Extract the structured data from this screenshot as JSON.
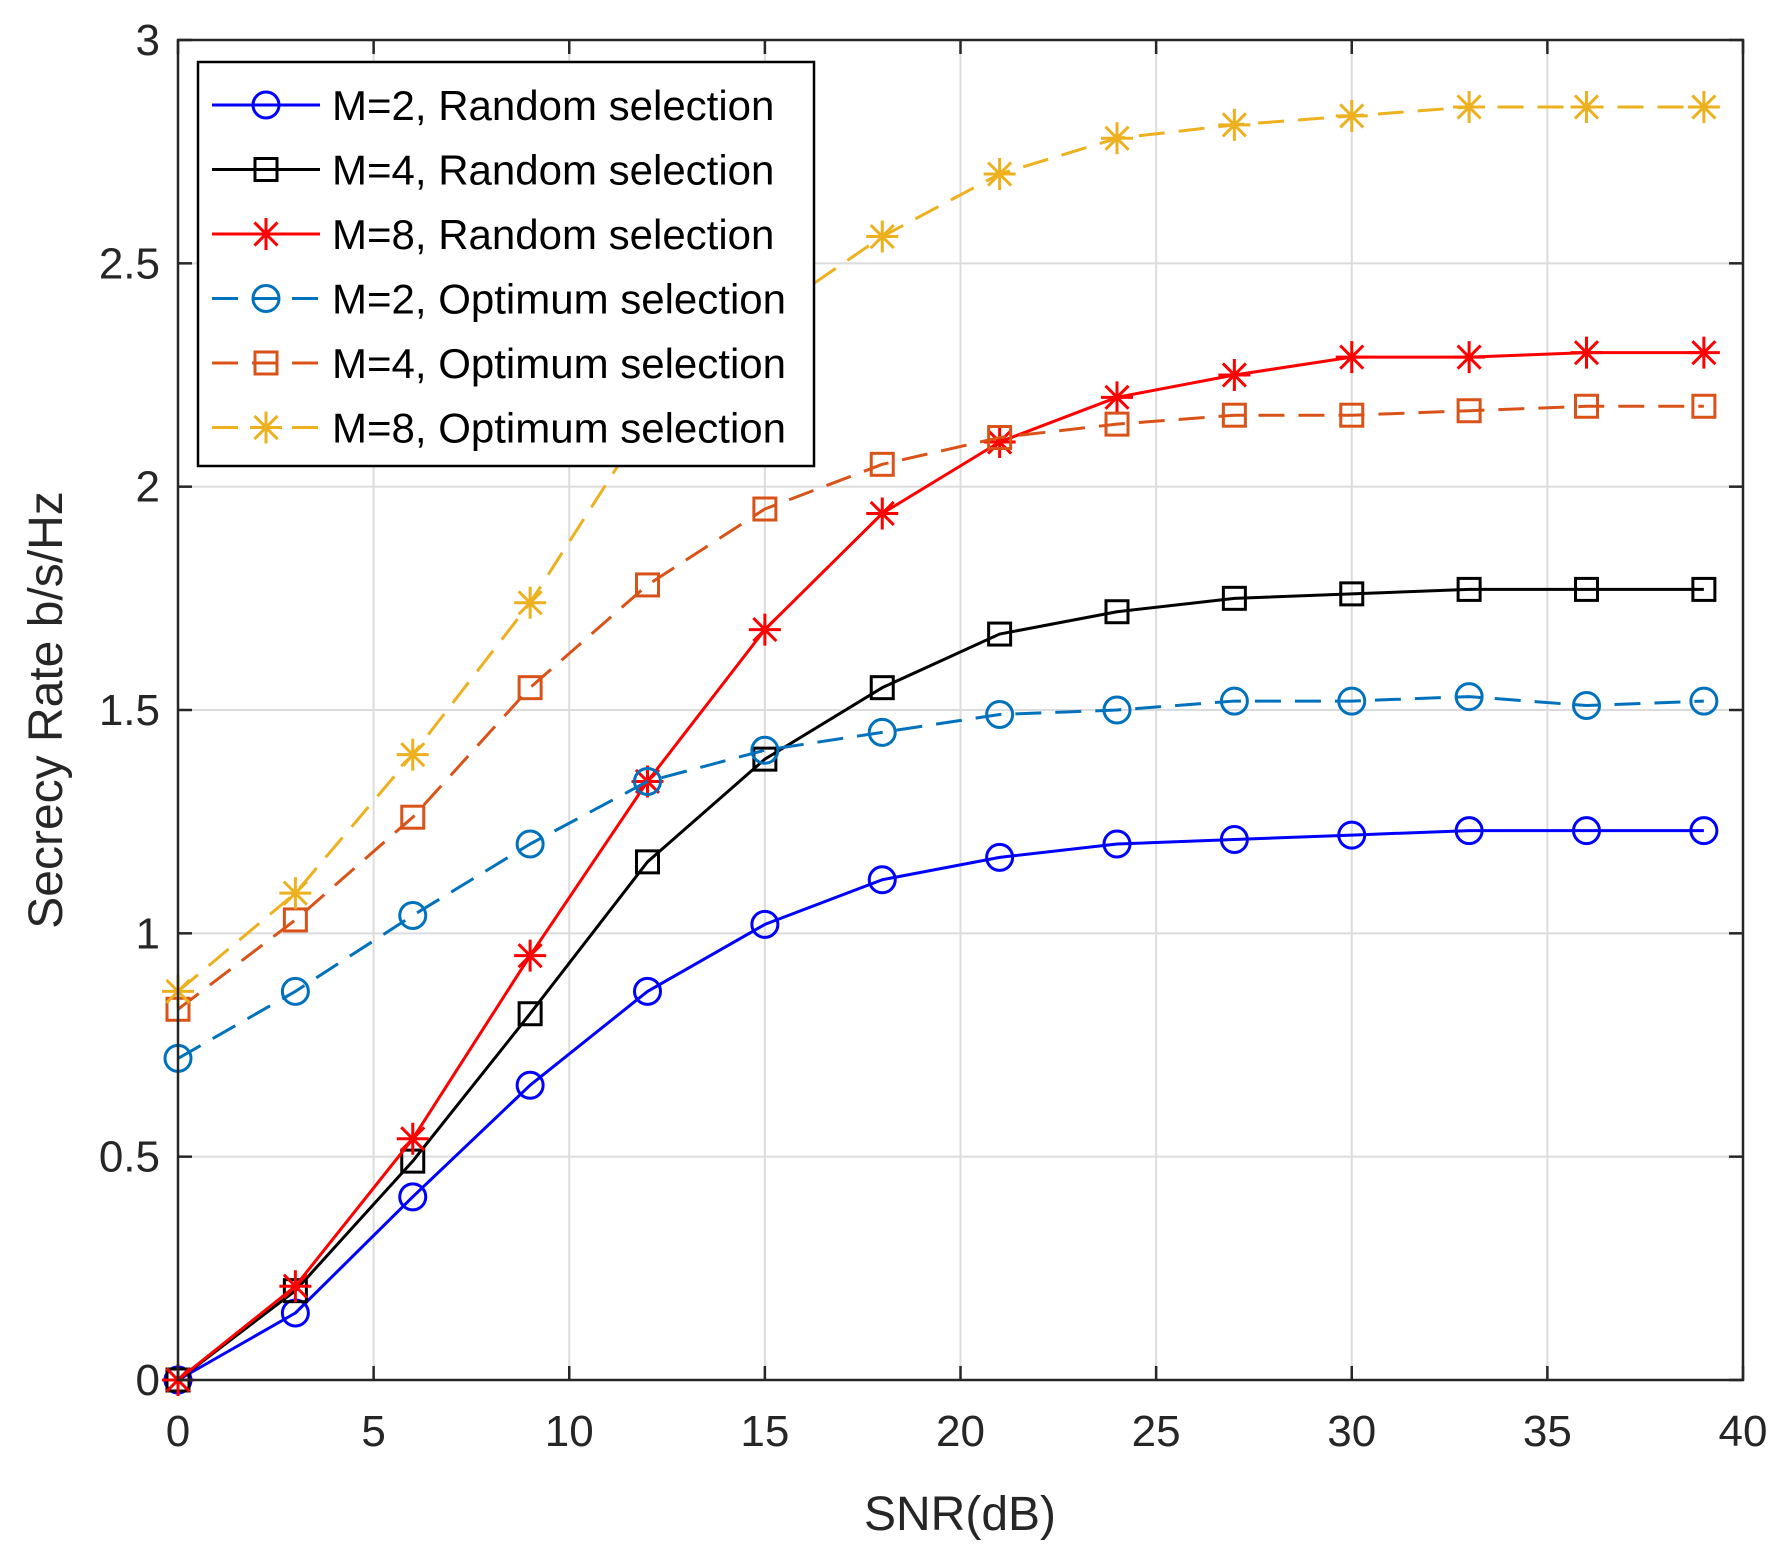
{
  "chart_data": {
    "type": "line",
    "title": "",
    "xlabel": "SNR(dB)",
    "ylabel": "Secrecy Rate b/s/Hz",
    "xlim": [
      0,
      40
    ],
    "ylim": [
      0,
      3
    ],
    "x_ticks": [
      "0",
      "5",
      "10",
      "15",
      "20",
      "25",
      "30",
      "35",
      "40"
    ],
    "y_ticks": [
      "0",
      "0.5",
      "1",
      "1.5",
      "2",
      "2.5",
      "3"
    ],
    "grid": true,
    "legend_position": "top-left",
    "x": [
      0,
      3,
      6,
      9,
      12,
      15,
      18,
      21,
      24,
      27,
      30,
      33,
      36,
      39
    ],
    "series": [
      {
        "name": "M=2, Random selection",
        "color": "#0000FF",
        "marker": "circle",
        "dashed": false,
        "values": [
          0.0,
          0.15,
          0.41,
          0.66,
          0.87,
          1.02,
          1.12,
          1.17,
          1.2,
          1.21,
          1.22,
          1.23,
          1.23,
          1.23
        ]
      },
      {
        "name": "M=4, Random selection",
        "color": "#000000",
        "marker": "square",
        "dashed": false,
        "values": [
          0.0,
          0.2,
          0.49,
          0.82,
          1.16,
          1.39,
          1.55,
          1.67,
          1.72,
          1.75,
          1.76,
          1.77,
          1.77,
          1.77
        ]
      },
      {
        "name": "M=8, Random selection",
        "color": "#FF0000",
        "marker": "asterisk",
        "dashed": false,
        "values": [
          0.0,
          0.21,
          0.54,
          0.95,
          1.34,
          1.68,
          1.94,
          2.1,
          2.2,
          2.25,
          2.29,
          2.29,
          2.3,
          2.3
        ]
      },
      {
        "name": "M=2, Optimum selection",
        "color": "#0072BD",
        "marker": "circle",
        "dashed": true,
        "values": [
          0.72,
          0.87,
          1.04,
          1.2,
          1.34,
          1.41,
          1.45,
          1.49,
          1.5,
          1.52,
          1.52,
          1.53,
          1.51,
          1.52
        ]
      },
      {
        "name": "M=4, Optimum selection",
        "color": "#D95319",
        "marker": "square",
        "dashed": true,
        "values": [
          0.83,
          1.03,
          1.26,
          1.55,
          1.78,
          1.95,
          2.05,
          2.11,
          2.14,
          2.16,
          2.16,
          2.17,
          2.18,
          2.18
        ]
      },
      {
        "name": "M=8, Optimum selection",
        "color": "#EDB120",
        "marker": "asterisk",
        "dashed": true,
        "values": [
          0.87,
          1.09,
          1.4,
          1.74,
          2.15,
          2.38,
          2.56,
          2.7,
          2.78,
          2.81,
          2.83,
          2.85,
          2.85,
          2.85
        ]
      }
    ]
  }
}
